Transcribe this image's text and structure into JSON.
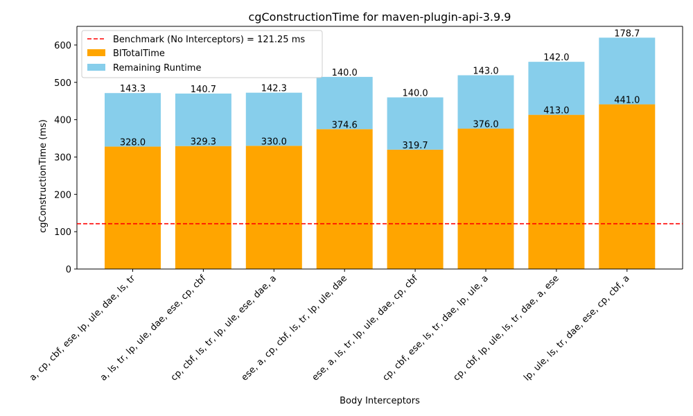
{
  "chart_data": {
    "type": "bar",
    "stacked": true,
    "title": "cgConstructionTime for maven-plugin-api-3.9.9",
    "xlabel": "Body Interceptors",
    "ylabel": "cgConstructionTime (ms)",
    "ylim": [
      0,
      650
    ],
    "yticks": [
      0,
      100,
      200,
      300,
      400,
      500,
      600
    ],
    "grid": false,
    "legend_position": "upper-left",
    "categories": [
      "a, cp, cbf, ese, lp, ule, dae, ls, tr",
      "a, ls, tr, lp, ule, dae, ese, cp, cbf",
      "cp, cbf, ls, tr, lp, ule, ese, dae, a",
      "ese, a, cp, cbf, ls, tr, lp, ule, dae",
      "ese, a, ls, tr, lp, ule, dae, cp, cbf",
      "cp, cbf, ese, ls, tr, dae, lp, ule, a",
      "cp, cbf, lp, ule, ls, tr, dae, a, ese",
      "lp, ule, ls, tr, dae, ese, cp, cbf, a"
    ],
    "series": [
      {
        "name": "BITotalTime",
        "color": "#FFA500",
        "values": [
          328.0,
          329.3,
          330.0,
          374.6,
          319.7,
          376.0,
          413.0,
          441.0
        ],
        "labels": [
          "328.0",
          "329.3",
          "330.0",
          "374.6",
          "319.7",
          "376.0",
          "413.0",
          "441.0"
        ]
      },
      {
        "name": "Remaining Runtime",
        "color": "#87CEEB",
        "values": [
          143.3,
          140.7,
          142.3,
          140.0,
          140.0,
          143.0,
          142.0,
          178.7
        ],
        "labels": [
          "143.3",
          "140.7",
          "142.3",
          "140.0",
          "140.0",
          "143.0",
          "142.0",
          "178.7"
        ]
      }
    ],
    "benchmark": {
      "label": "Benchmark (No Interceptors) = 121.25 ms",
      "value": 121.25,
      "color": "#FF0000",
      "style": "dashed"
    }
  }
}
